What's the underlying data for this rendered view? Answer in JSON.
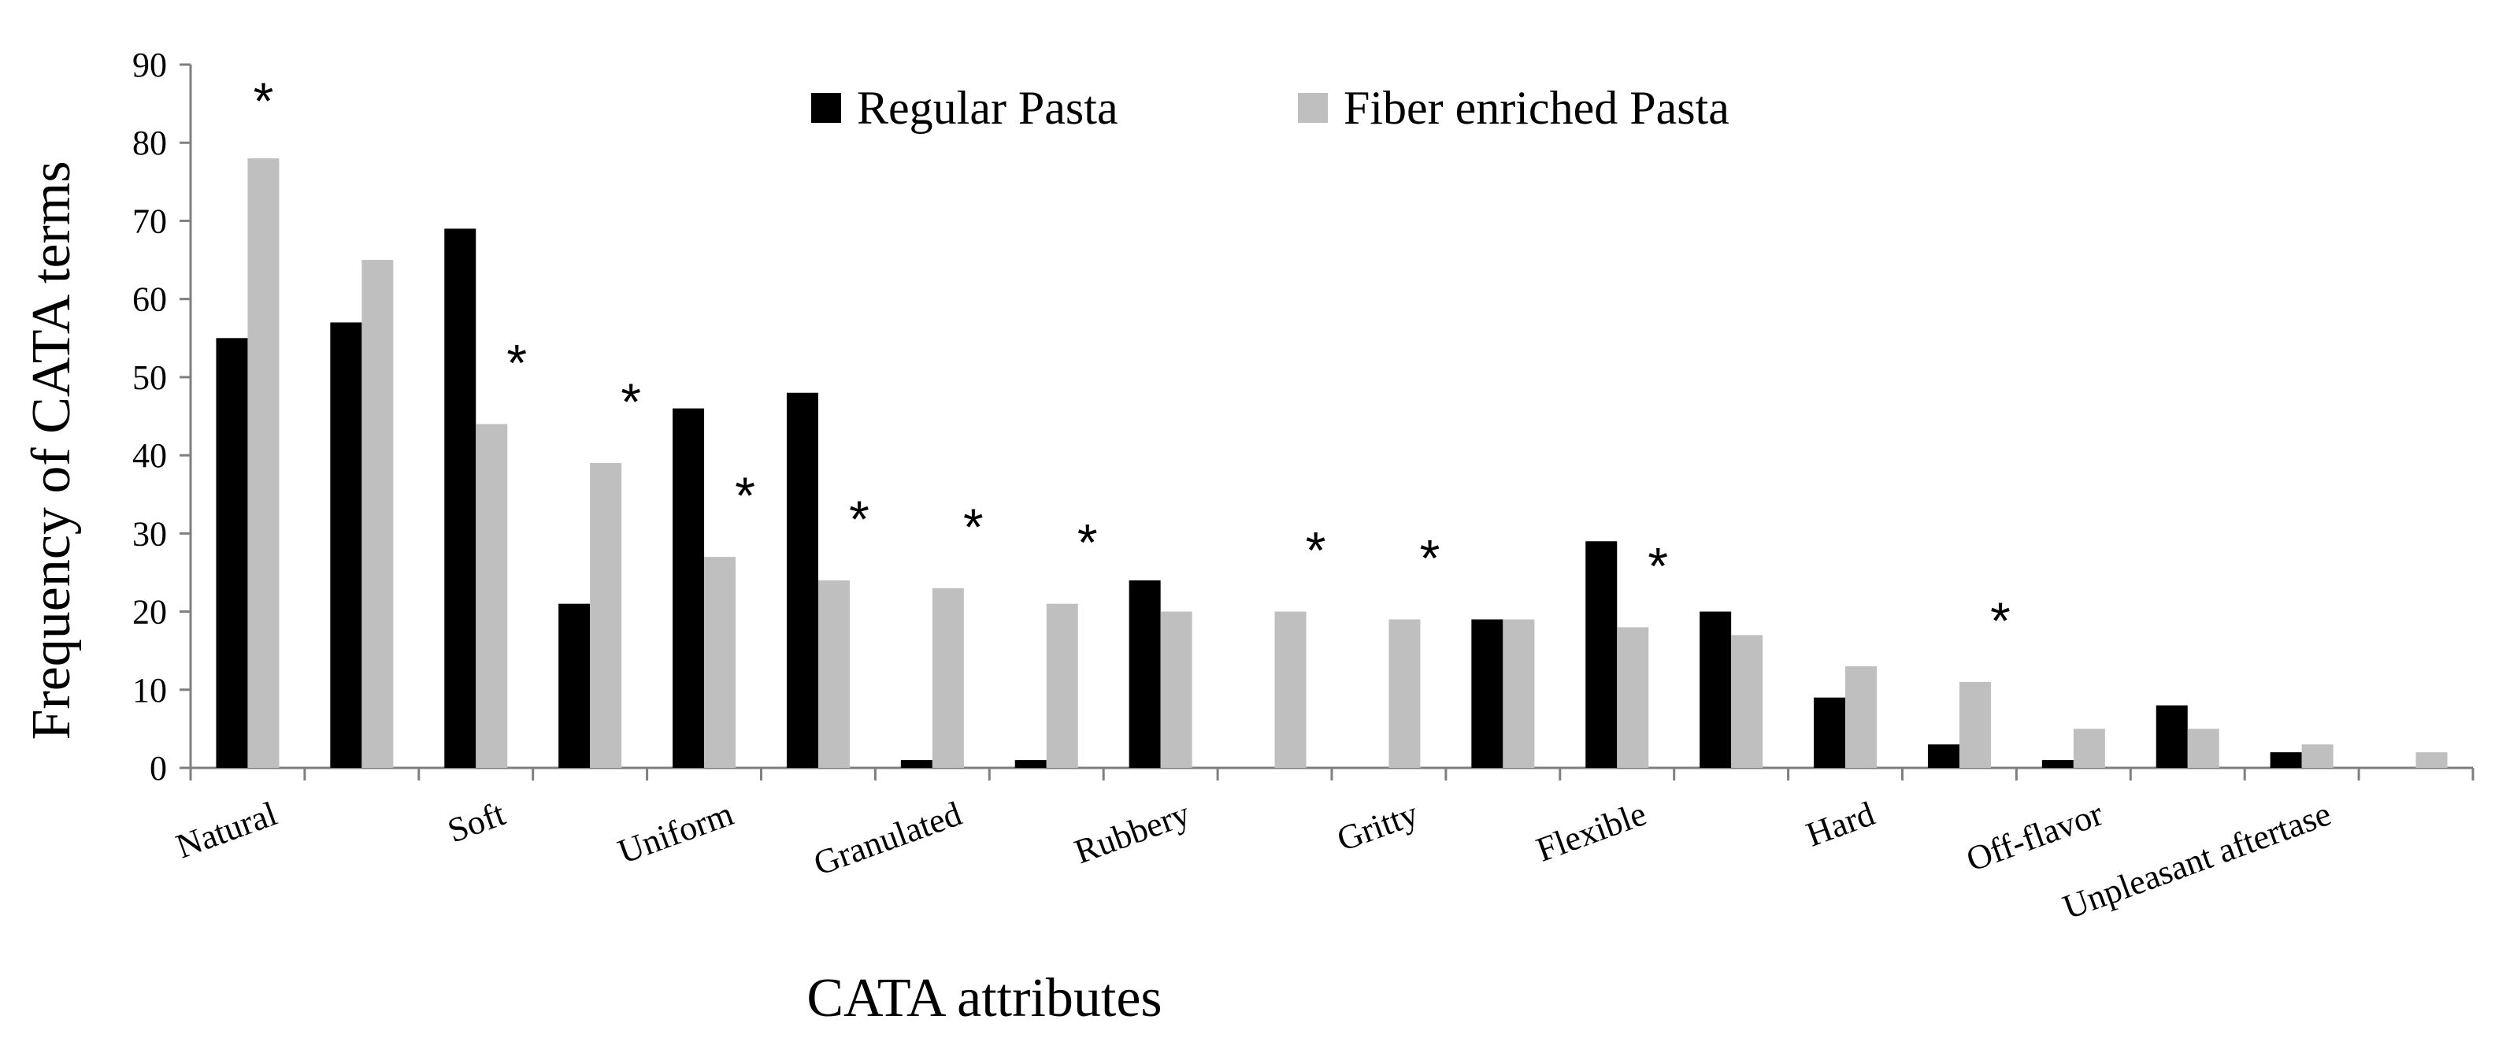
{
  "chart_data": {
    "type": "bar",
    "xlabel": "CATA attributes",
    "ylabel": "Frequency of CATA terms",
    "ylim": [
      0,
      90
    ],
    "yticks": [
      "0",
      "10",
      "20",
      "30",
      "40",
      "50",
      "60",
      "70",
      "80",
      "90"
    ],
    "categories": [
      "Natural",
      "",
      "Soft",
      "",
      "Uniform",
      "",
      "Granulated",
      "",
      "Rubbery",
      "",
      "Gritty",
      "",
      "Flexible",
      "",
      "Hard",
      "",
      "Off-flavor",
      "",
      "Unpleasant aftertase",
      ""
    ],
    "series": [
      {
        "name": "Regular Pasta",
        "color": "#000000",
        "values": [
          55,
          57,
          69,
          21,
          46,
          48,
          1,
          1,
          24,
          0,
          0,
          19,
          29,
          20,
          9,
          3,
          1,
          8,
          2,
          0
        ]
      },
      {
        "name": "Fiber enriched Pasta",
        "color": "#bfbfbf",
        "values": [
          78,
          65,
          44,
          39,
          27,
          24,
          23,
          21,
          20,
          20,
          19,
          19,
          18,
          17,
          13,
          11,
          5,
          5,
          3,
          2
        ]
      }
    ],
    "significance_marker": "*",
    "significant_indices": [
      0,
      2,
      3,
      4,
      5,
      6,
      7,
      9,
      10,
      12,
      15
    ],
    "legend_position": "top-center",
    "grid": false
  }
}
